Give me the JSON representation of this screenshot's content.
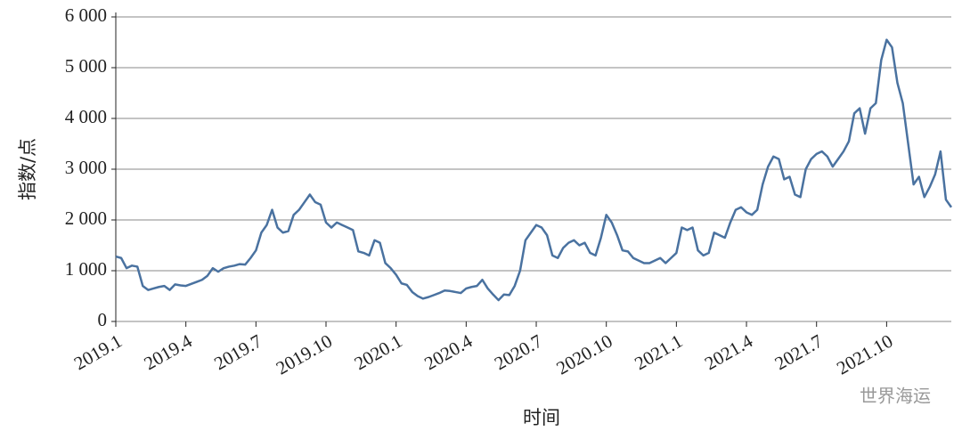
{
  "chart_data": {
    "type": "line",
    "y_label": "指数/点",
    "x_label": "时间",
    "watermark": "世界海运",
    "color": "#4a72a0",
    "grid": true,
    "ylim": [
      0,
      6000
    ],
    "yticks": [
      0,
      {
        "value": 1000,
        "label": "1 000"
      },
      {
        "value": 2000,
        "label": "2 000"
      },
      {
        "value": 3000,
        "label": "3 000"
      },
      {
        "value": 4000,
        "label": "4 000"
      },
      {
        "value": 5000,
        "label": "5 000"
      },
      {
        "value": 6000,
        "label": "6 000"
      }
    ],
    "categories": [
      "2019.1",
      null,
      null,
      null,
      null,
      null,
      null,
      null,
      null,
      null,
      null,
      null,
      null,
      "2019.4",
      null,
      null,
      null,
      null,
      null,
      null,
      null,
      null,
      null,
      null,
      null,
      null,
      "2019.7",
      null,
      null,
      null,
      null,
      null,
      null,
      null,
      null,
      null,
      null,
      null,
      null,
      "2019.10",
      null,
      null,
      null,
      null,
      null,
      null,
      null,
      null,
      null,
      null,
      null,
      null,
      "2020.1",
      null,
      null,
      null,
      null,
      null,
      null,
      null,
      null,
      null,
      null,
      null,
      null,
      "2020.4",
      null,
      null,
      null,
      null,
      null,
      null,
      null,
      null,
      null,
      null,
      null,
      null,
      "2020.7",
      null,
      null,
      null,
      null,
      null,
      null,
      null,
      null,
      null,
      null,
      null,
      null,
      "2020.10",
      null,
      null,
      null,
      null,
      null,
      null,
      null,
      null,
      null,
      null,
      null,
      null,
      "2021.1",
      null,
      null,
      null,
      null,
      null,
      null,
      null,
      null,
      null,
      null,
      null,
      null,
      "2021.4",
      null,
      null,
      null,
      null,
      null,
      null,
      null,
      null,
      null,
      null,
      null,
      null,
      "2021.7",
      null,
      null,
      null,
      null,
      null,
      null,
      null,
      null,
      null,
      null,
      null,
      null,
      "2021.10",
      null,
      null,
      null,
      null,
      null,
      null,
      null,
      null,
      null,
      null,
      null,
      null
    ],
    "values": [
      1280,
      1250,
      1050,
      1100,
      1080,
      700,
      620,
      650,
      680,
      700,
      620,
      730,
      710,
      700,
      740,
      780,
      820,
      900,
      1050,
      980,
      1050,
      1080,
      1100,
      1130,
      1120,
      1250,
      1400,
      1750,
      1900,
      2200,
      1850,
      1750,
      1780,
      2100,
      2200,
      2350,
      2500,
      2350,
      2300,
      1950,
      1850,
      1950,
      1900,
      1850,
      1800,
      1380,
      1350,
      1300,
      1600,
      1550,
      1150,
      1050,
      920,
      750,
      720,
      580,
      500,
      450,
      480,
      520,
      560,
      610,
      600,
      580,
      560,
      650,
      680,
      700,
      820,
      650,
      530,
      420,
      530,
      520,
      700,
      1000,
      1600,
      1750,
      1900,
      1850,
      1700,
      1300,
      1250,
      1450,
      1550,
      1600,
      1500,
      1550,
      1350,
      1300,
      1650,
      2100,
      1950,
      1700,
      1400,
      1380,
      1250,
      1200,
      1150,
      1150,
      1200,
      1250,
      1150,
      1250,
      1350,
      1850,
      1800,
      1850,
      1400,
      1300,
      1350,
      1750,
      1700,
      1650,
      1950,
      2200,
      2250,
      2150,
      2100,
      2200,
      2700,
      3050,
      3250,
      3200,
      2800,
      2850,
      2500,
      2450,
      3000,
      3200,
      3300,
      3350,
      3250,
      3050,
      3200,
      3350,
      3550,
      4100,
      4200,
      3700,
      4200,
      4300,
      5150,
      5550,
      5400,
      4700,
      4300,
      3500,
      2700,
      2850,
      2450,
      2650,
      2900,
      3350,
      2400,
      2250
    ]
  }
}
